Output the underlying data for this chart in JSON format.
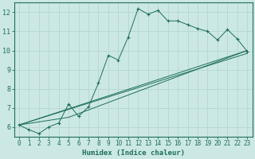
{
  "xlabel": "Humidex (Indice chaleur)",
  "bg_color": "#cce8e4",
  "line_color": "#1e6e5e",
  "grid_color": "#b8d8d4",
  "xlim": [
    -0.5,
    23.5
  ],
  "ylim": [
    5.5,
    12.5
  ],
  "xticks": [
    0,
    1,
    2,
    3,
    4,
    5,
    6,
    7,
    8,
    9,
    10,
    11,
    12,
    13,
    14,
    15,
    16,
    17,
    18,
    19,
    20,
    21,
    22,
    23
  ],
  "yticks": [
    6,
    7,
    8,
    9,
    10,
    11,
    12
  ],
  "main_series": {
    "x": [
      0,
      1,
      2,
      3,
      4,
      5,
      6,
      7,
      8,
      9,
      10,
      11,
      12,
      13,
      14,
      15,
      16,
      17,
      18,
      19,
      20,
      21,
      22,
      23
    ],
    "y": [
      6.1,
      5.85,
      5.65,
      6.0,
      6.2,
      7.2,
      6.55,
      7.05,
      8.3,
      9.75,
      9.5,
      10.7,
      12.2,
      11.9,
      12.1,
      11.55,
      11.55,
      11.35,
      11.15,
      11.0,
      10.55,
      11.1,
      10.6,
      9.95
    ]
  },
  "straight_lines": [
    {
      "x": [
        0,
        23
      ],
      "y": [
        6.1,
        10.0
      ]
    },
    {
      "x": [
        0,
        23
      ],
      "y": [
        6.1,
        9.85
      ]
    },
    {
      "x": [
        0,
        5,
        23
      ],
      "y": [
        6.1,
        6.5,
        10.0
      ]
    }
  ]
}
